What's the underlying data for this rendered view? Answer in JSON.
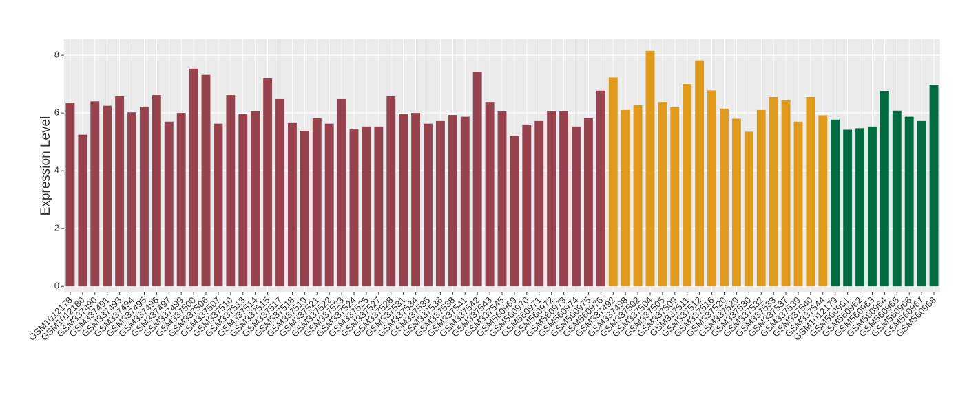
{
  "chart_data": {
    "type": "bar",
    "y_label": "Expression Level",
    "ylim": [
      -0.21,
      8.55
    ],
    "yticks": [
      0,
      2,
      4,
      6,
      8
    ],
    "grid": true,
    "series": [
      {
        "color": "#96434f",
        "categories": [
          "GSM1012178",
          "GSM1012180",
          "GSM337490",
          "GSM337491",
          "GSM337493",
          "GSM337494",
          "GSM337495",
          "GSM337496",
          "GSM337497",
          "GSM337499",
          "GSM337500",
          "GSM337506",
          "GSM337507",
          "GSM337510",
          "GSM337513",
          "GSM337514",
          "GSM337515",
          "GSM337517",
          "GSM337518",
          "GSM337519",
          "GSM337521",
          "GSM337522",
          "GSM337523",
          "GSM337524",
          "GSM337525",
          "GSM337527",
          "GSM337528",
          "GSM337531",
          "GSM337534",
          "GSM337535",
          "GSM337536",
          "GSM337538",
          "GSM337541",
          "GSM337542",
          "GSM337543",
          "GSM337545",
          "GSM560969",
          "GSM560970",
          "GSM560971",
          "GSM560972",
          "GSM560973",
          "GSM560974",
          "GSM560975",
          "GSM560976"
        ],
        "values": [
          6.35,
          5.25,
          6.4,
          6.25,
          6.58,
          6.02,
          6.22,
          6.62,
          5.7,
          6.0,
          7.53,
          7.32,
          5.63,
          6.62,
          5.97,
          6.07,
          7.2,
          6.48,
          5.65,
          5.38,
          5.82,
          5.63,
          6.48,
          5.43,
          5.53,
          5.53,
          6.58,
          5.97,
          6.0,
          5.63,
          5.72,
          5.93,
          5.87,
          7.43,
          6.38,
          6.07,
          5.2,
          5.6,
          5.72,
          6.07,
          6.07,
          5.53,
          5.82,
          6.77
        ]
      },
      {
        "color": "#e09a1b",
        "categories": [
          "GSM337492",
          "GSM337498",
          "GSM337502",
          "GSM337504",
          "GSM337505",
          "GSM337509",
          "GSM337511",
          "GSM337512",
          "GSM337516",
          "GSM337520",
          "GSM337529",
          "GSM337530",
          "GSM337532",
          "GSM337533",
          "GSM337537",
          "GSM337539",
          "GSM337540",
          "GSM337544"
        ],
        "values": [
          7.23,
          6.1,
          6.27,
          8.15,
          6.38,
          6.2,
          7.0,
          7.82,
          6.78,
          6.15,
          5.8,
          5.35,
          6.1,
          6.55,
          6.43,
          5.7,
          6.55,
          5.92
        ]
      },
      {
        "color": "#006a41",
        "categories": [
          "GSM1012179",
          "GSM560961",
          "GSM560962",
          "GSM560963",
          "GSM560964",
          "GSM560965",
          "GSM560966",
          "GSM560967",
          "GSM560968"
        ],
        "values": [
          5.77,
          5.42,
          5.47,
          5.53,
          6.75,
          6.08,
          5.87,
          5.72,
          6.97
        ]
      }
    ]
  }
}
